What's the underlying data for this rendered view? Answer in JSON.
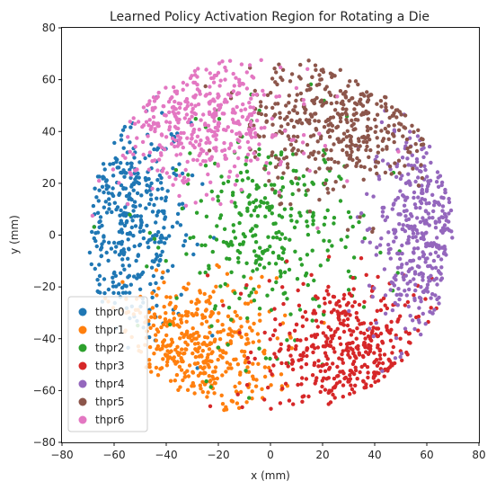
{
  "chart_data": {
    "type": "scatter",
    "title": "Learned Policy Activation Region for Rotating a Die",
    "xlabel": "x (mm)",
    "ylabel": "y (mm)",
    "xlim": [
      -80,
      80
    ],
    "ylim": [
      -80,
      80
    ],
    "xticks": [
      -80,
      -60,
      -40,
      -20,
      0,
      20,
      40,
      60,
      80
    ],
    "yticks": [
      -80,
      -60,
      -40,
      -20,
      0,
      20,
      40,
      60,
      80
    ],
    "grid": false,
    "legend_position": "lower-left",
    "series": [
      {
        "name": "thpr0",
        "color": "#1f77b4",
        "region": {
          "center": [
            -55,
            5
          ],
          "spread": [
            12,
            22
          ]
        },
        "count": 380
      },
      {
        "name": "thpr1",
        "color": "#ff7f0e",
        "region": {
          "center": [
            -30,
            -45
          ],
          "spread": [
            16,
            14
          ]
        },
        "count": 420
      },
      {
        "name": "thpr2",
        "color": "#2ca02c",
        "region": {
          "center": [
            0,
            0
          ],
          "spread": [
            18,
            20
          ]
        },
        "count": 330
      },
      {
        "name": "thpr3",
        "color": "#d62728",
        "region": {
          "center": [
            30,
            -45
          ],
          "spread": [
            16,
            14
          ]
        },
        "count": 420
      },
      {
        "name": "thpr4",
        "color": "#9467bd",
        "region": {
          "center": [
            58,
            0
          ],
          "spread": [
            10,
            22
          ]
        },
        "count": 380
      },
      {
        "name": "thpr5",
        "color": "#8c564b",
        "region": {
          "center": [
            28,
            45
          ],
          "spread": [
            18,
            14
          ]
        },
        "count": 420
      },
      {
        "name": "thpr6",
        "color": "#e377c2",
        "region": {
          "center": [
            -28,
            45
          ],
          "spread": [
            18,
            14
          ]
        },
        "count": 420
      }
    ],
    "boundary_radius": 70
  }
}
